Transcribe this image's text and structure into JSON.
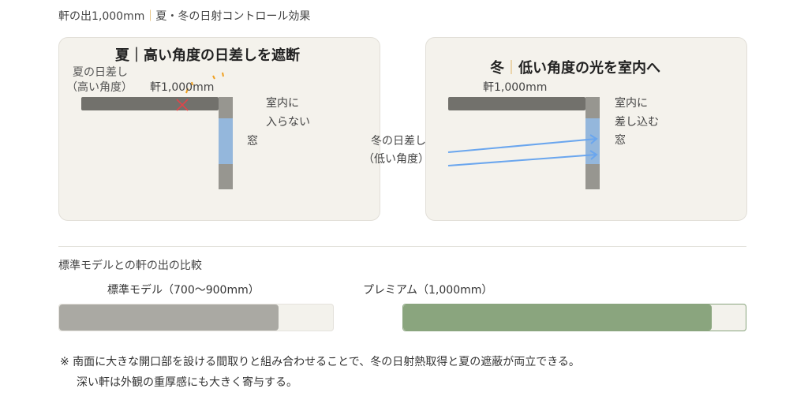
{
  "header": {
    "prefix": "軒の出1,000mm",
    "separator": "｜",
    "suffix": "夏・冬の日射コントロール効果"
  },
  "summer": {
    "title": "夏｜高い角度の日差しを遮断",
    "sun_label_1": "夏の日差し",
    "sun_label_2": "（高い角度）",
    "eave_label": "軒1,000mm",
    "indoor_1": "室内に",
    "indoor_2": "入らない",
    "window_label": "窓"
  },
  "winter": {
    "title_season": "冬",
    "title_sep": "｜",
    "title_rest": "低い角度の光を室内へ",
    "eave_label": "軒1,000mm",
    "indoor_1": "室内に",
    "indoor_2": "差し込む",
    "window_label": "窓",
    "sun_label_1": "冬の日差し",
    "sun_label_2": "（低い角度）"
  },
  "comparison": {
    "title": "標準モデルとの軒の出の比較",
    "standard": {
      "label": "標準モデル（700〜900mm）",
      "fill_fraction": 0.8,
      "color": "#aaa9a3"
    },
    "premium": {
      "label": "プレミアム（1,000mm）",
      "fill_fraction": 0.9,
      "color": "#8aa57e"
    }
  },
  "footnote": {
    "line1": "※ 南面に大きな開口部を設ける間取りと組み合わせることで、冬の日射熱取得と夏の遮蔽が両立できる。",
    "line2": "深い軒は外観の重厚感にも大きく寄与する。"
  }
}
